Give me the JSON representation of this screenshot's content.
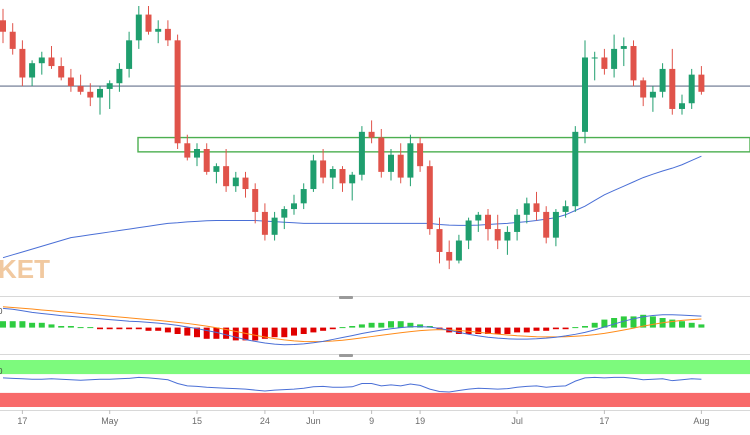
{
  "watermark": "KET",
  "panel_tags": [
    "0",
    "0"
  ],
  "chart_data": {
    "type": "candlestick",
    "x_ticks": [
      "17",
      "May",
      "15",
      "24",
      "Jun",
      "9",
      "19",
      "Jul",
      "17",
      "Aug"
    ],
    "ylim": [
      0,
      100
    ],
    "colors": {
      "up": "#1f9e6e",
      "down": "#e0534a",
      "ma": "#4a6fd6",
      "zone": "#4caf50",
      "hline": "#3a4a6b",
      "macd_up": "#2ecc40",
      "macd_down": "#e00000",
      "signal": "#ff8c1a",
      "rsi_over": "#7dfa7d",
      "rsi_under": "#f86a6a"
    },
    "candles": [
      [
        95,
        99,
        87,
        91
      ],
      [
        91,
        94,
        83,
        85
      ],
      [
        85,
        88,
        72,
        75
      ],
      [
        75,
        81,
        72,
        80
      ],
      [
        80,
        84,
        76,
        82
      ],
      [
        82,
        86,
        78,
        79
      ],
      [
        79,
        82,
        74,
        75
      ],
      [
        75,
        78,
        70,
        72
      ],
      [
        72,
        76,
        69,
        70
      ],
      [
        70,
        73,
        65,
        68
      ],
      [
        68,
        72,
        62,
        71
      ],
      [
        71,
        74,
        64,
        73
      ],
      [
        73,
        80,
        70,
        78
      ],
      [
        78,
        91,
        75,
        88
      ],
      [
        88,
        100,
        85,
        97
      ],
      [
        97,
        100,
        90,
        91
      ],
      [
        91,
        95,
        87,
        92
      ],
      [
        92,
        95,
        86,
        88
      ],
      [
        88,
        90,
        50,
        52
      ],
      [
        52,
        55,
        46,
        47
      ],
      [
        47,
        52,
        44,
        50
      ],
      [
        50,
        52,
        41,
        42
      ],
      [
        42,
        45,
        38,
        44
      ],
      [
        44,
        50,
        35,
        37
      ],
      [
        37,
        42,
        35,
        40
      ],
      [
        40,
        42,
        33,
        36
      ],
      [
        36,
        38,
        24,
        28
      ],
      [
        28,
        31,
        18,
        20
      ],
      [
        20,
        28,
        18,
        26
      ],
      [
        26,
        30,
        22,
        29
      ],
      [
        29,
        34,
        27,
        31
      ],
      [
        31,
        38,
        29,
        36
      ],
      [
        36,
        48,
        35,
        46
      ],
      [
        46,
        50,
        38,
        40
      ],
      [
        40,
        44,
        36,
        43
      ],
      [
        43,
        44,
        35,
        38
      ],
      [
        38,
        42,
        32,
        41
      ],
      [
        41,
        58,
        39,
        56
      ],
      [
        56,
        60,
        52,
        54
      ],
      [
        54,
        57,
        40,
        42
      ],
      [
        42,
        50,
        39,
        48
      ],
      [
        48,
        52,
        38,
        40
      ],
      [
        40,
        55,
        37,
        52
      ],
      [
        52,
        54,
        42,
        44
      ],
      [
        44,
        46,
        20,
        22
      ],
      [
        22,
        26,
        10,
        14
      ],
      [
        14,
        18,
        8,
        11
      ],
      [
        11,
        20,
        10,
        18
      ],
      [
        18,
        26,
        15,
        25
      ],
      [
        25,
        28,
        21,
        27
      ],
      [
        27,
        29,
        18,
        22
      ],
      [
        22,
        27,
        15,
        18
      ],
      [
        18,
        23,
        13,
        21
      ],
      [
        21,
        29,
        18,
        27
      ],
      [
        27,
        33,
        24,
        31
      ],
      [
        31,
        35,
        25,
        28
      ],
      [
        28,
        30,
        17,
        19
      ],
      [
        19,
        29,
        16,
        28
      ],
      [
        28,
        32,
        26,
        30
      ],
      [
        30,
        58,
        28,
        56
      ],
      [
        56,
        88,
        52,
        82
      ],
      [
        82,
        84,
        74,
        82
      ],
      [
        82,
        85,
        76,
        78
      ],
      [
        78,
        90,
        75,
        85
      ],
      [
        85,
        89,
        79,
        86
      ],
      [
        86,
        88,
        72,
        74
      ],
      [
        74,
        75,
        65,
        68
      ],
      [
        68,
        72,
        63,
        70
      ],
      [
        70,
        80,
        68,
        78
      ],
      [
        78,
        85,
        62,
        64
      ],
      [
        64,
        69,
        62,
        66
      ],
      [
        66,
        78,
        64,
        76
      ],
      [
        76,
        79,
        69,
        70
      ]
    ],
    "moving_average": [
      12,
      13,
      14,
      15,
      16,
      17,
      18,
      19,
      19.5,
      20,
      20.5,
      21,
      21.5,
      22,
      22.5,
      23,
      23.5,
      24,
      24.2,
      24.5,
      24.7,
      24.9,
      25,
      25,
      25,
      25,
      25,
      24.8,
      24.6,
      24.4,
      24.2,
      24,
      24,
      24,
      24,
      24,
      24,
      24,
      24,
      24,
      24,
      24,
      24,
      24,
      24,
      23.6,
      23.4,
      23.3,
      23.3,
      23.4,
      23.6,
      23.8,
      24,
      24.3,
      24.6,
      25,
      25.5,
      26,
      27,
      28.5,
      30,
      32,
      34,
      35.5,
      37,
      38.5,
      40,
      41.2,
      42.3,
      43.3,
      44.5,
      46,
      47.5
    ],
    "zone": [
      49,
      54
    ],
    "hline": 72,
    "macd": {
      "histogram": [
        4,
        4,
        4,
        3,
        3,
        2,
        1,
        1,
        0,
        0,
        -1,
        -1,
        -1,
        -1,
        -1,
        -2,
        -2,
        -3,
        -4,
        -5,
        -6,
        -7,
        -7,
        -7,
        -8,
        -8,
        -8,
        -7,
        -6,
        -6,
        -5,
        -4,
        -3,
        -2,
        -1,
        0,
        1,
        2,
        3,
        3,
        4,
        4,
        3,
        2,
        1,
        -1,
        -3,
        -4,
        -4,
        -4,
        -4,
        -4,
        -4,
        -3,
        -3,
        -2,
        -2,
        -1,
        -1,
        0,
        1,
        3,
        5,
        6,
        7,
        7,
        8,
        7,
        6,
        5,
        4,
        3,
        2
      ],
      "macd_line": [
        12,
        11.5,
        10.5,
        9.5,
        8.8,
        8.2,
        7.5,
        7,
        6.5,
        6,
        5.5,
        5,
        4.5,
        4,
        3.7,
        3.3,
        2.8,
        2.2,
        1.4,
        0.4,
        -0.6,
        -1.8,
        -3,
        -4.5,
        -6,
        -7.5,
        -8.6,
        -9.6,
        -10.3,
        -10.7,
        -10.6,
        -10.2,
        -9.5,
        -8.6,
        -7.4,
        -6.2,
        -5,
        -3.7,
        -2.6,
        -1.6,
        -0.7,
        0,
        0.5,
        0.6,
        0.3,
        -0.5,
        -1.7,
        -3,
        -4.2,
        -5.2,
        -6,
        -6.6,
        -7,
        -7.2,
        -7.2,
        -7,
        -6.6,
        -6,
        -5.2,
        -4.2,
        -3,
        -1.4,
        0.4,
        2.2,
        4,
        5.5,
        6.8,
        7.6,
        8,
        8,
        7.8,
        7.5,
        7.2
      ],
      "signal_line": [
        13,
        12.6,
        12.1,
        11.6,
        11,
        10.5,
        9.9,
        9.4,
        8.8,
        8.3,
        7.7,
        7.2,
        6.6,
        6.1,
        5.5,
        5,
        4.5,
        3.9,
        3.3,
        2.6,
        1.8,
        0.9,
        -0.1,
        -1.2,
        -2.4,
        -3.6,
        -4.8,
        -5.9,
        -6.9,
        -7.7,
        -8.3,
        -8.7,
        -8.8,
        -8.7,
        -8.4,
        -7.9,
        -7.2,
        -6.4,
        -5.6,
        -4.8,
        -4,
        -3.2,
        -2.5,
        -1.9,
        -1.5,
        -1.3,
        -1.4,
        -1.8,
        -2.3,
        -2.9,
        -3.5,
        -4.1,
        -4.6,
        -5.1,
        -5.4,
        -5.7,
        -5.8,
        -5.8,
        -5.7,
        -5.4,
        -5,
        -4.4,
        -3.6,
        -2.6,
        -1.5,
        -0.3,
        0.9,
        2,
        3,
        3.8,
        4.5,
        5,
        5.4
      ],
      "ylim": [
        -14,
        16
      ]
    },
    "rsi": {
      "values": [
        62,
        61,
        60,
        59,
        59,
        60,
        59,
        58,
        57,
        58,
        59,
        59,
        60,
        61,
        63,
        62,
        60,
        58,
        50,
        45,
        44,
        42,
        41,
        40,
        39,
        38,
        36,
        34,
        36,
        37,
        38,
        40,
        43,
        44,
        42,
        42,
        43,
        50,
        50,
        45,
        47,
        45,
        49,
        46,
        38,
        33,
        32,
        35,
        38,
        40,
        39,
        38,
        39,
        42,
        44,
        45,
        42,
        44,
        45,
        55,
        62,
        63,
        62,
        63,
        63,
        61,
        58,
        59,
        60,
        56,
        58,
        60,
        59
      ],
      "over": 70,
      "under": 30
    }
  }
}
